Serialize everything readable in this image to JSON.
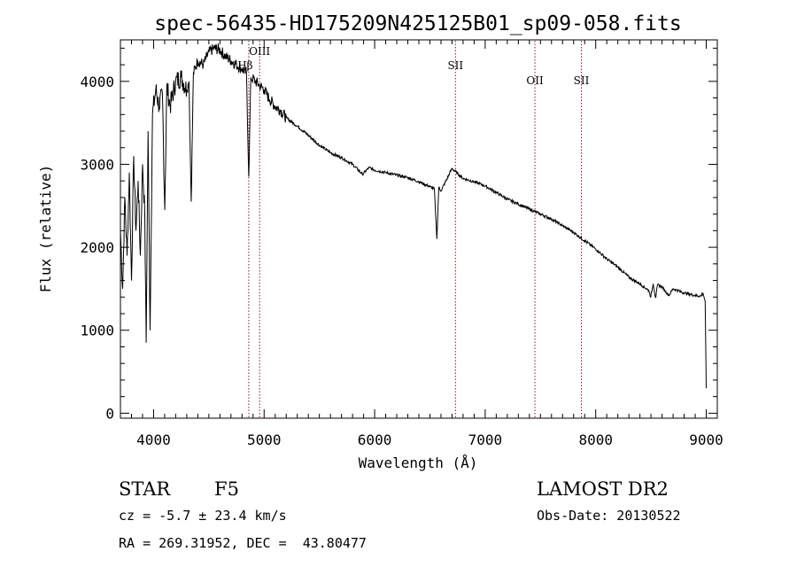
{
  "chart_data": {
    "type": "line",
    "title": "spec-56435-HD175209N425125B01_sp09-058.fits",
    "xlabel": "Wavelength (Å)",
    "ylabel": "Flux (relative)",
    "xlim": [
      3700,
      9100
    ],
    "ylim": [
      -60,
      4500
    ],
    "x_ticks": [
      4000,
      5000,
      6000,
      7000,
      8000,
      9000
    ],
    "y_ticks": [
      0,
      1000,
      2000,
      3000,
      4000
    ],
    "grid": false,
    "series": [
      {
        "x": [
          3700,
          3720,
          3740,
          3760,
          3780,
          3800,
          3820,
          3840,
          3860,
          3880,
          3900,
          3920,
          3933,
          3950,
          3968,
          3990,
          4020,
          4050,
          4080,
          4101,
          4120,
          4150,
          4200,
          4250,
          4300,
          4320,
          4340,
          4360,
          4400,
          4450,
          4500,
          4550,
          4600,
          4650,
          4700,
          4750,
          4800,
          4840,
          4861,
          4880,
          4920,
          4960,
          5000,
          5050,
          5100,
          5150,
          5200,
          5300,
          5400,
          5500,
          5600,
          5700,
          5800,
          5890,
          5950,
          6000,
          6100,
          6200,
          6300,
          6400,
          6500,
          6540,
          6563,
          6580,
          6600,
          6700,
          6800,
          6900,
          7000,
          7100,
          7200,
          7300,
          7400,
          7500,
          7600,
          7700,
          7800,
          7900,
          8000,
          8100,
          8200,
          8300,
          8400,
          8480,
          8498,
          8520,
          8542,
          8560,
          8600,
          8662,
          8700,
          8800,
          8900,
          8950,
          8970,
          8990,
          9000
        ],
        "y": [
          2200,
          1500,
          2600,
          1900,
          2900,
          1600,
          3100,
          2200,
          2800,
          1900,
          3000,
          2400,
          850,
          3400,
          1000,
          3600,
          3900,
          3700,
          3850,
          2450,
          3950,
          3700,
          4000,
          4050,
          3900,
          4000,
          2550,
          4100,
          4250,
          4200,
          4350,
          4400,
          4380,
          4300,
          4250,
          4200,
          4150,
          4100,
          2850,
          4050,
          4000,
          3950,
          3900,
          3780,
          3700,
          3650,
          3560,
          3460,
          3350,
          3230,
          3140,
          3080,
          3000,
          2880,
          2960,
          2930,
          2900,
          2870,
          2840,
          2790,
          2730,
          2700,
          2100,
          2720,
          2680,
          2950,
          2830,
          2790,
          2740,
          2660,
          2580,
          2520,
          2460,
          2400,
          2340,
          2260,
          2180,
          2080,
          1980,
          1860,
          1760,
          1640,
          1560,
          1480,
          1400,
          1560,
          1390,
          1550,
          1520,
          1420,
          1500,
          1450,
          1420,
          1410,
          1450,
          1350,
          300
        ]
      }
    ],
    "lines": [
      {
        "x": 4861,
        "label": "Hβ"
      },
      {
        "x": 4959,
        "label": "OIII"
      },
      {
        "x": 6731,
        "label": "SII"
      },
      {
        "x": 7450,
        "label": "OII"
      },
      {
        "x": 7870,
        "label": "SII"
      }
    ]
  },
  "info": {
    "class_label": "STAR",
    "subclass_label": "F5",
    "survey": "LAMOST DR2",
    "cz": "cz = -5.7 ± 23.4 km/s",
    "obs_date": "Obs-Date: 20130522",
    "radec": "RA = 269.31952, DEC =  43.80477"
  }
}
